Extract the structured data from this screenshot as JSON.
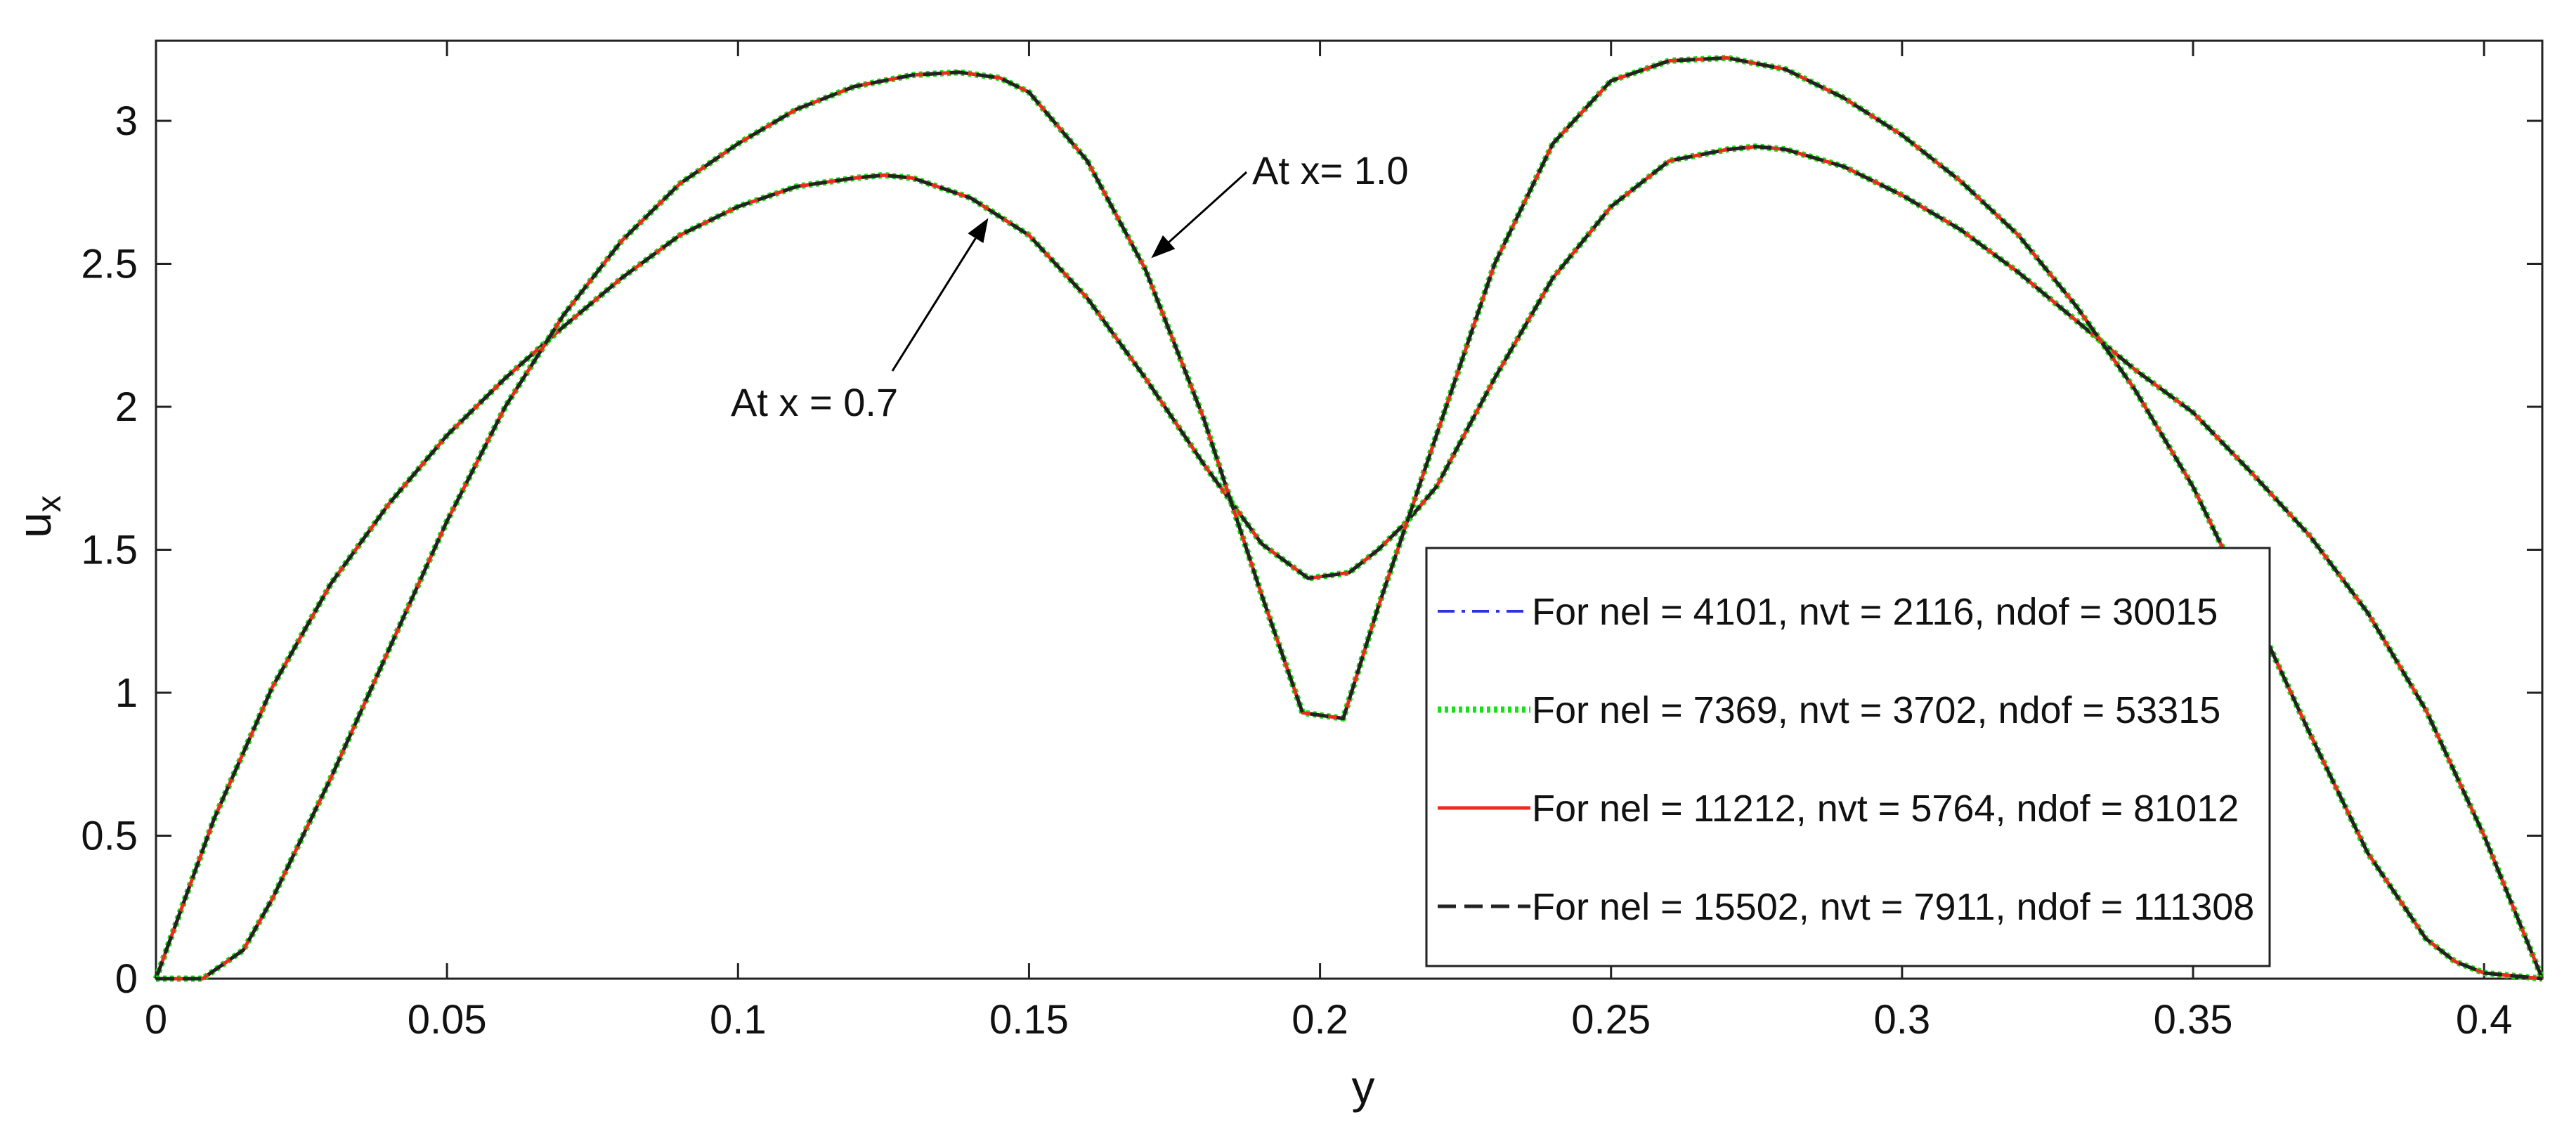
{
  "chart_data": {
    "type": "line",
    "title": "",
    "xlabel": "y",
    "ylabel": "u",
    "ylabel_sub": "x",
    "xlim": [
      0,
      0.41
    ],
    "ylim": [
      0,
      3.28
    ],
    "xticks": [
      0,
      0.05,
      0.1,
      0.15,
      0.2,
      0.25,
      0.3,
      0.35,
      0.4
    ],
    "xtick_labels": [
      "0",
      "0.05",
      "0.1",
      "0.15",
      "0.2",
      "0.25",
      "0.3",
      "0.35",
      "0.4"
    ],
    "yticks": [
      0,
      0.5,
      1,
      1.5,
      2,
      2.5,
      3
    ],
    "ytick_labels": [
      "0",
      "0.5",
      "1",
      "1.5",
      "2",
      "2.5",
      "3"
    ],
    "grid": false,
    "legend_position": "bottom-right",
    "legend": [
      {
        "label": "For nel = 4101, nvt = 2116, ndof = 30015",
        "color": "#2a35e0",
        "style": "dashdot"
      },
      {
        "label": "For nel = 7369, nvt = 3702, ndof = 53315",
        "color": "#18e018",
        "style": "dotted"
      },
      {
        "label": "For nel = 11212, nvt = 5764, ndof = 81012",
        "color": "#ee2a1e",
        "style": "solid"
      },
      {
        "label": "For nel = 15502, nvt = 7911, ndof = 111308",
        "color": "#222222",
        "style": "dashed"
      }
    ],
    "annotations": [
      {
        "text": "At x = 0.7",
        "x": 0.143,
        "y": 2.66
      },
      {
        "text": "At x= 1.0",
        "x": 0.171,
        "y": 2.52
      }
    ],
    "profiles": {
      "at_x_0_7": {
        "label": "At x = 0.7",
        "x": [
          0,
          0.01,
          0.02,
          0.03,
          0.04,
          0.05,
          0.06,
          0.07,
          0.08,
          0.09,
          0.1,
          0.11,
          0.12,
          0.125,
          0.13,
          0.14,
          0.15,
          0.16,
          0.17,
          0.18,
          0.19,
          0.198,
          0.205,
          0.21,
          0.215,
          0.22,
          0.23,
          0.24,
          0.25,
          0.26,
          0.27,
          0.275,
          0.28,
          0.29,
          0.3,
          0.31,
          0.32,
          0.33,
          0.34,
          0.35,
          0.36,
          0.37,
          0.38,
          0.39,
          0.4,
          0.41
        ],
        "y": [
          0,
          0.56,
          1.02,
          1.38,
          1.66,
          1.9,
          2.1,
          2.28,
          2.45,
          2.6,
          2.7,
          2.77,
          2.8,
          2.81,
          2.8,
          2.73,
          2.6,
          2.38,
          2.1,
          1.8,
          1.52,
          1.4,
          1.42,
          1.5,
          1.6,
          1.72,
          2.1,
          2.45,
          2.7,
          2.86,
          2.9,
          2.91,
          2.9,
          2.84,
          2.74,
          2.62,
          2.47,
          2.3,
          2.13,
          1.98,
          1.77,
          1.55,
          1.28,
          0.94,
          0.5,
          0
        ]
      },
      "at_x_1_0": {
        "label": "At x= 1.0",
        "x": [
          0,
          0.008,
          0.015,
          0.02,
          0.03,
          0.04,
          0.05,
          0.06,
          0.07,
          0.08,
          0.09,
          0.1,
          0.11,
          0.12,
          0.13,
          0.138,
          0.145,
          0.15,
          0.16,
          0.17,
          0.18,
          0.19,
          0.197,
          0.204,
          0.21,
          0.22,
          0.23,
          0.24,
          0.25,
          0.26,
          0.27,
          0.28,
          0.29,
          0.3,
          0.31,
          0.32,
          0.33,
          0.34,
          0.35,
          0.36,
          0.37,
          0.38,
          0.39,
          0.395,
          0.4,
          0.41
        ],
        "y": [
          0,
          0,
          0.1,
          0.28,
          0.7,
          1.15,
          1.6,
          2.0,
          2.32,
          2.58,
          2.78,
          2.92,
          3.04,
          3.12,
          3.16,
          3.17,
          3.15,
          3.1,
          2.86,
          2.48,
          1.96,
          1.34,
          0.93,
          0.91,
          1.3,
          1.9,
          2.5,
          2.92,
          3.14,
          3.21,
          3.22,
          3.18,
          3.08,
          2.95,
          2.79,
          2.6,
          2.35,
          2.06,
          1.72,
          1.3,
          0.86,
          0.44,
          0.14,
          0.06,
          0.02,
          0
        ]
      }
    }
  }
}
